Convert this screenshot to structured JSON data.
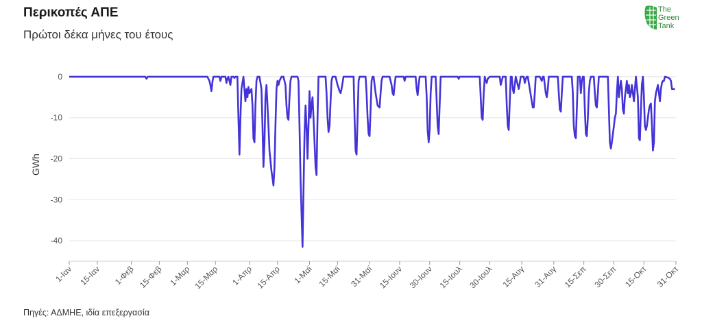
{
  "header": {
    "title": "Περικοπές ΑΠΕ",
    "subtitle": "Πρώτοι δέκα μήνες του έτους"
  },
  "footer": {
    "source": "Πηγές: ΑΔΜΗΕ, ιδία επεξεργασία"
  },
  "logo": {
    "line1": "The",
    "line2": "Green",
    "line3": "Tank",
    "color": "#2e8b3a"
  },
  "chart_data": {
    "type": "line",
    "ylabel": "GWh",
    "xlabel": "",
    "ylim": [
      -45,
      5
    ],
    "yticks": [
      0,
      -10,
      -20,
      -30,
      -40
    ],
    "grid": true,
    "line_color": "#4433d6",
    "x_domain_days": [
      0,
      303
    ],
    "xticks": [
      {
        "day": 0,
        "label": "1-Ιαν"
      },
      {
        "day": 14,
        "label": "15-Ιαν"
      },
      {
        "day": 31,
        "label": "1-Φεβ"
      },
      {
        "day": 45,
        "label": "15-Φεβ"
      },
      {
        "day": 59,
        "label": "1-Μαρ"
      },
      {
        "day": 73,
        "label": "15-Μαρ"
      },
      {
        "day": 90,
        "label": "1-Απρ"
      },
      {
        "day": 104,
        "label": "15-Απρ"
      },
      {
        "day": 120,
        "label": "1-Μαϊ"
      },
      {
        "day": 134,
        "label": "15-Μαϊ"
      },
      {
        "day": 150,
        "label": "31-Μαϊ"
      },
      {
        "day": 165,
        "label": "15-Ιουν"
      },
      {
        "day": 180,
        "label": "30-Ιουν"
      },
      {
        "day": 195,
        "label": "15-Ιουλ"
      },
      {
        "day": 210,
        "label": "30-Ιουλ"
      },
      {
        "day": 226,
        "label": "15-Αυγ"
      },
      {
        "day": 242,
        "label": "31-Αυγ"
      },
      {
        "day": 257,
        "label": "15-Σεπ"
      },
      {
        "day": 272,
        "label": "30-Σεπ"
      },
      {
        "day": 287,
        "label": "15-Οκτ"
      },
      {
        "day": 303,
        "label": "31-Οκτ"
      }
    ],
    "series": [
      {
        "points": [
          [
            0,
            0
          ],
          [
            38,
            0
          ],
          [
            38.6,
            -0.5
          ],
          [
            39.2,
            0
          ],
          [
            69,
            0
          ],
          [
            70,
            -1
          ],
          [
            70.5,
            -2
          ],
          [
            71,
            -3.5
          ],
          [
            71.6,
            -1
          ],
          [
            72,
            0
          ],
          [
            75,
            0
          ],
          [
            75.5,
            -1
          ],
          [
            76,
            0
          ],
          [
            78,
            0
          ],
          [
            78.5,
            -1.5
          ],
          [
            79,
            -0.5
          ],
          [
            79.5,
            0
          ],
          [
            80,
            -1
          ],
          [
            80.5,
            -2
          ],
          [
            81,
            0
          ],
          [
            82,
            0
          ],
          [
            82.5,
            -0.3
          ],
          [
            83,
            0
          ],
          [
            84,
            0
          ],
          [
            84.5,
            -10
          ],
          [
            85,
            -19
          ],
          [
            85.5,
            -10
          ],
          [
            86,
            -3
          ],
          [
            87,
            0
          ],
          [
            88,
            -6
          ],
          [
            88.5,
            -3
          ],
          [
            89,
            -5
          ],
          [
            89.5,
            -2.5
          ],
          [
            90,
            -4
          ],
          [
            91,
            -3
          ],
          [
            91.5,
            -7
          ],
          [
            92,
            -15
          ],
          [
            92.5,
            -16
          ],
          [
            93,
            -7
          ],
          [
            93.5,
            -1
          ],
          [
            94,
            0
          ],
          [
            95,
            0
          ],
          [
            96,
            -3
          ],
          [
            96.5,
            -12
          ],
          [
            97,
            -22
          ],
          [
            97.5,
            -16
          ],
          [
            98,
            -5
          ],
          [
            98.5,
            -2
          ],
          [
            99,
            -7
          ],
          [
            99.5,
            -12
          ],
          [
            100,
            -18
          ],
          [
            101,
            -23
          ],
          [
            102,
            -26.5
          ],
          [
            102.5,
            -22
          ],
          [
            103,
            -12
          ],
          [
            103.5,
            -3
          ],
          [
            104,
            -1
          ],
          [
            104.5,
            -2
          ],
          [
            105,
            -1
          ],
          [
            106,
            0
          ],
          [
            107,
            0
          ],
          [
            108,
            -2
          ],
          [
            108.5,
            -7
          ],
          [
            109,
            -10
          ],
          [
            109.5,
            -10.5
          ],
          [
            110,
            -5
          ],
          [
            110.5,
            -1
          ],
          [
            111,
            0
          ],
          [
            114,
            0
          ],
          [
            114.5,
            -1
          ],
          [
            115,
            -12
          ],
          [
            115.5,
            -25
          ],
          [
            116,
            -33
          ],
          [
            116.5,
            -41.5
          ],
          [
            117,
            -28
          ],
          [
            117.5,
            -14
          ],
          [
            118,
            -7
          ],
          [
            118.5,
            -12
          ],
          [
            119,
            -20
          ],
          [
            119.5,
            -12
          ],
          [
            120,
            -3.5
          ],
          [
            120.5,
            -10
          ],
          [
            121,
            -7
          ],
          [
            121.5,
            -5
          ],
          [
            122,
            -10
          ],
          [
            122.5,
            -16
          ],
          [
            123,
            -22
          ],
          [
            123.5,
            -24
          ],
          [
            124,
            -10
          ],
          [
            124.5,
            0
          ],
          [
            128,
            0
          ],
          [
            128.5,
            -4
          ],
          [
            129,
            -10
          ],
          [
            129.5,
            -13.5
          ],
          [
            130,
            -12
          ],
          [
            130.5,
            -6
          ],
          [
            131,
            -1
          ],
          [
            131.5,
            0
          ],
          [
            133,
            0
          ],
          [
            134,
            -2
          ],
          [
            135,
            -3.5
          ],
          [
            135.5,
            -4
          ],
          [
            136,
            -3
          ],
          [
            136.5,
            -1.5
          ],
          [
            137,
            0
          ],
          [
            142,
            0
          ],
          [
            142.5,
            -10
          ],
          [
            143,
            -18
          ],
          [
            143.5,
            -19
          ],
          [
            144,
            -10
          ],
          [
            144.5,
            -1
          ],
          [
            145,
            0
          ],
          [
            148,
            0
          ],
          [
            148.5,
            -4
          ],
          [
            149,
            -10
          ],
          [
            149.5,
            -14
          ],
          [
            150,
            -14.5
          ],
          [
            150.5,
            -8
          ],
          [
            151,
            -1
          ],
          [
            151.5,
            0
          ],
          [
            152,
            0
          ],
          [
            153,
            -4
          ],
          [
            154,
            -7
          ],
          [
            155,
            -7.5
          ],
          [
            155.5,
            -4
          ],
          [
            156,
            -1
          ],
          [
            156.5,
            0
          ],
          [
            160,
            0
          ],
          [
            161,
            -2
          ],
          [
            161.5,
            -4
          ],
          [
            162,
            -4.5
          ],
          [
            162.5,
            -2
          ],
          [
            163,
            0
          ],
          [
            167,
            0
          ],
          [
            167.5,
            -1
          ],
          [
            168,
            0
          ],
          [
            173,
            0
          ],
          [
            173.5,
            -3
          ],
          [
            174,
            -4.5
          ],
          [
            174.5,
            -2
          ],
          [
            175,
            0
          ],
          [
            178,
            0
          ],
          [
            178.5,
            -5
          ],
          [
            179,
            -13
          ],
          [
            179.5,
            -16
          ],
          [
            180,
            -13
          ],
          [
            180.5,
            -4
          ],
          [
            181,
            0
          ],
          [
            183,
            0
          ],
          [
            183.5,
            -6
          ],
          [
            184,
            -12
          ],
          [
            184.5,
            -14
          ],
          [
            185,
            -7
          ],
          [
            185.5,
            0
          ],
          [
            194,
            0
          ],
          [
            194.5,
            -0.5
          ],
          [
            195,
            0
          ],
          [
            205,
            0
          ],
          [
            205.5,
            -5
          ],
          [
            206,
            -10
          ],
          [
            206.5,
            -10.5
          ],
          [
            207,
            -4
          ],
          [
            207.5,
            0
          ],
          [
            208,
            -1
          ],
          [
            208.5,
            -1.5
          ],
          [
            209,
            -0.5
          ],
          [
            210,
            0
          ],
          [
            215,
            0
          ],
          [
            215.5,
            -2
          ],
          [
            216,
            -1
          ],
          [
            216.5,
            0
          ],
          [
            218,
            0
          ],
          [
            218.5,
            -7
          ],
          [
            219,
            -12
          ],
          [
            219.5,
            -13
          ],
          [
            220,
            -6
          ],
          [
            220.5,
            0
          ],
          [
            221,
            0
          ],
          [
            221.5,
            -3
          ],
          [
            222,
            -4
          ],
          [
            222.5,
            -2
          ],
          [
            223,
            0
          ],
          [
            224,
            -2
          ],
          [
            224.5,
            -3
          ],
          [
            225,
            -1.5
          ],
          [
            225.5,
            0
          ],
          [
            226,
            0
          ],
          [
            227,
            0
          ],
          [
            227.5,
            -1.5
          ],
          [
            228,
            -0.5
          ],
          [
            228.5,
            0
          ],
          [
            229,
            0
          ],
          [
            230,
            -3
          ],
          [
            231,
            -6
          ],
          [
            231.5,
            -7.5
          ],
          [
            232,
            -7.5
          ],
          [
            232.5,
            -4
          ],
          [
            233,
            0
          ],
          [
            235,
            0
          ],
          [
            236,
            -1
          ],
          [
            236.5,
            0
          ],
          [
            237,
            0
          ],
          [
            237.5,
            -2
          ],
          [
            238,
            -4
          ],
          [
            238.5,
            -5
          ],
          [
            239,
            -3
          ],
          [
            239.5,
            0
          ],
          [
            244,
            0
          ],
          [
            244.5,
            -4
          ],
          [
            245,
            -8
          ],
          [
            245.5,
            -8.5
          ],
          [
            246,
            -4
          ],
          [
            246.5,
            0
          ],
          [
            251,
            0
          ],
          [
            251.5,
            -4
          ],
          [
            252,
            -12
          ],
          [
            252.5,
            -14.5
          ],
          [
            253,
            -15
          ],
          [
            253.5,
            -8
          ],
          [
            254,
            0
          ],
          [
            255,
            0
          ],
          [
            255.5,
            -4
          ],
          [
            256,
            -1
          ],
          [
            256.5,
            0
          ],
          [
            257,
            0
          ],
          [
            257.5,
            -8
          ],
          [
            258,
            -14
          ],
          [
            258.5,
            -14.5
          ],
          [
            259,
            -10
          ],
          [
            259.5,
            -4
          ],
          [
            260,
            -1
          ],
          [
            260.5,
            0
          ],
          [
            262,
            0
          ],
          [
            262.5,
            -4
          ],
          [
            263,
            -7
          ],
          [
            263.5,
            -7.5
          ],
          [
            264,
            -4
          ],
          [
            264.5,
            0
          ],
          [
            269,
            0
          ],
          [
            269.5,
            -8
          ],
          [
            270,
            -16
          ],
          [
            270.5,
            -17.5
          ],
          [
            271,
            -16
          ],
          [
            271.5,
            -14
          ],
          [
            272,
            -12
          ],
          [
            272.5,
            -10
          ],
          [
            273,
            -9
          ],
          [
            273.5,
            -4
          ],
          [
            274,
            0
          ],
          [
            274.5,
            -5
          ],
          [
            275,
            -3
          ],
          [
            275.5,
            -1
          ],
          [
            276,
            -3
          ],
          [
            276.5,
            -8
          ],
          [
            277,
            -9
          ],
          [
            277.5,
            -5
          ],
          [
            278,
            -3
          ],
          [
            278.5,
            -1
          ],
          [
            279,
            -4
          ],
          [
            279.5,
            -2
          ],
          [
            280,
            -5
          ],
          [
            280.5,
            -4
          ],
          [
            281,
            -2
          ],
          [
            281.5,
            -4
          ],
          [
            282,
            -6
          ],
          [
            283,
            0
          ],
          [
            284,
            -5
          ],
          [
            284.5,
            -15
          ],
          [
            285,
            -15.5
          ],
          [
            285.5,
            -8
          ],
          [
            286,
            -2
          ],
          [
            286.5,
            0
          ],
          [
            287,
            -5
          ],
          [
            287.5,
            -12
          ],
          [
            288,
            -13
          ],
          [
            288.5,
            -12
          ],
          [
            289,
            -10
          ],
          [
            289.5,
            -8
          ],
          [
            290,
            -7
          ],
          [
            290.5,
            -6.5
          ],
          [
            291,
            -12
          ],
          [
            291.5,
            -18
          ],
          [
            292,
            -16
          ],
          [
            292.5,
            -6
          ],
          [
            293,
            -4
          ],
          [
            293.5,
            -3
          ],
          [
            294,
            -2
          ],
          [
            294.5,
            -4
          ],
          [
            295,
            -6
          ],
          [
            295.5,
            -3
          ],
          [
            296,
            -1.5
          ],
          [
            296.5,
            -1
          ],
          [
            297,
            -1
          ],
          [
            297.5,
            0
          ],
          [
            299,
            -0.2
          ],
          [
            300,
            -0.5
          ],
          [
            300.5,
            -1
          ],
          [
            301,
            -3
          ],
          [
            302,
            -3
          ],
          [
            302.5,
            -3
          ]
        ]
      }
    ]
  }
}
